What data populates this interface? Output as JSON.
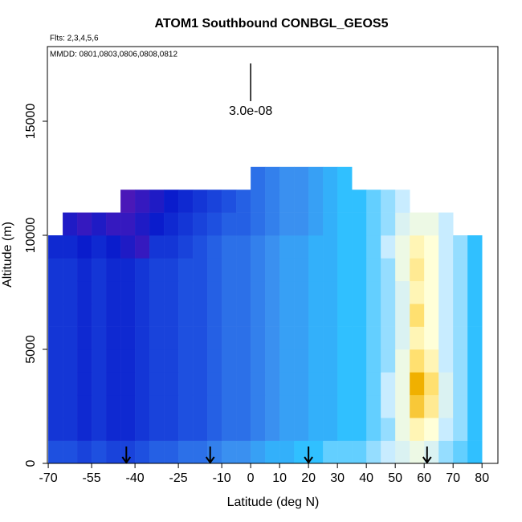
{
  "chart_data": {
    "type": "heatmap",
    "title": "ATOM1 Southbound CONBGL_GEOS5",
    "subtitle": "Flts: 2,3,4,5,6",
    "annotation": "MMDD: 0801,0803,0806,0808,0812",
    "scale_label": "3.0e-08",
    "x_label": "Latitude (deg N)",
    "y_label": "Altitude (m)",
    "xlim": [
      -70.3,
      85.5
    ],
    "ylim": [
      0,
      18275
    ],
    "xticks": [
      -70,
      -55,
      -40,
      -25,
      -10,
      0,
      10,
      20,
      30,
      40,
      50,
      60,
      70,
      80
    ],
    "yticks": [
      0,
      5000,
      10000,
      15000
    ],
    "lat_edges": [
      -70,
      -65,
      -60,
      -55,
      -50,
      -45,
      -40,
      -35,
      -30,
      -25,
      -20,
      -15,
      -10,
      -5,
      0,
      5,
      10,
      15,
      20,
      25,
      30,
      35,
      40,
      45,
      50,
      55,
      60,
      65,
      70,
      75,
      80
    ],
    "alt_edges": [
      0,
      1000,
      2000,
      3000,
      4000,
      5000,
      6000,
      7000,
      8000,
      9000,
      10000,
      11000,
      12000,
      13000
    ],
    "colormap": [
      {
        "value": 9e-09,
        "color": "#4a18b8"
      },
      {
        "value": 1.2e-08,
        "color": "#0a1ccc"
      },
      {
        "value": 1.6e-08,
        "color": "#1e50e0"
      },
      {
        "value": 2e-08,
        "color": "#3a90f0"
      },
      {
        "value": 2.3e-08,
        "color": "#30c0ff"
      },
      {
        "value": 2.6e-08,
        "color": "#c8ecff"
      },
      {
        "value": 2.9e-08,
        "color": "#ffffd8"
      },
      {
        "value": 3.2e-08,
        "color": "#ffe070"
      },
      {
        "value": 3.4e-08,
        "color": "#f0b000"
      }
    ],
    "arrows_lat": [
      -43,
      -14,
      20,
      61
    ],
    "z": [
      [
        1.6e-08,
        1.6e-08,
        1.5e-08,
        1.6e-08,
        1.5e-08,
        1.5e-08,
        1.6e-08,
        1.7e-08,
        1.7e-08,
        1.8e-08,
        1.8e-08,
        1.9e-08,
        2e-08,
        2e-08,
        2.1e-08,
        2.2e-08,
        2.2e-08,
        2.3e-08,
        2.3e-08,
        2.4e-08,
        2.4e-08,
        2.4e-08,
        2.5e-08,
        2.6e-08,
        2.7e-08,
        2.8e-08,
        2.7e-08,
        2.5e-08,
        2.4e-08,
        2.3e-08
      ],
      [
        1.4e-08,
        1.4e-08,
        1.3e-08,
        1.4e-08,
        1.3e-08,
        1.3e-08,
        1.4e-08,
        1.5e-08,
        1.5e-08,
        1.6e-08,
        1.6e-08,
        1.7e-08,
        1.8e-08,
        1.8e-08,
        1.9e-08,
        2e-08,
        2.1e-08,
        2.1e-08,
        2.2e-08,
        2.2e-08,
        2.3e-08,
        2.3e-08,
        2.4e-08,
        2.5e-08,
        2.8e-08,
        3e-08,
        2.9e-08,
        2.6e-08,
        2.5e-08,
        2.3e-08
      ],
      [
        1.4e-08,
        1.4e-08,
        1.3e-08,
        1.4e-08,
        1.3e-08,
        1.3e-08,
        1.4e-08,
        1.5e-08,
        1.5e-08,
        1.6e-08,
        1.6e-08,
        1.7e-08,
        1.8e-08,
        1.8e-08,
        1.9e-08,
        2e-08,
        2.1e-08,
        2.1e-08,
        2.2e-08,
        2.2e-08,
        2.3e-08,
        2.3e-08,
        2.4e-08,
        2.6e-08,
        2.8e-08,
        3.3e-08,
        3.1e-08,
        2.7e-08,
        2.5e-08,
        2.3e-08
      ],
      [
        1.4e-08,
        1.4e-08,
        1.3e-08,
        1.4e-08,
        1.3e-08,
        1.3e-08,
        1.4e-08,
        1.5e-08,
        1.5e-08,
        1.6e-08,
        1.6e-08,
        1.7e-08,
        1.8e-08,
        1.8e-08,
        1.9e-08,
        2e-08,
        2.1e-08,
        2.1e-08,
        2.2e-08,
        2.2e-08,
        2.3e-08,
        2.3e-08,
        2.4e-08,
        2.6e-08,
        2.8e-08,
        3.4e-08,
        3.2e-08,
        2.7e-08,
        2.5e-08,
        2.3e-08
      ],
      [
        1.4e-08,
        1.4e-08,
        1.3e-08,
        1.4e-08,
        1.3e-08,
        1.3e-08,
        1.4e-08,
        1.5e-08,
        1.5e-08,
        1.6e-08,
        1.6e-08,
        1.7e-08,
        1.8e-08,
        1.8e-08,
        1.9e-08,
        2e-08,
        2.1e-08,
        2.1e-08,
        2.2e-08,
        2.2e-08,
        2.3e-08,
        2.3e-08,
        2.4e-08,
        2.5e-08,
        2.8e-08,
        3.2e-08,
        3e-08,
        2.6e-08,
        2.5e-08,
        2.3e-08
      ],
      [
        1.4e-08,
        1.4e-08,
        1.3e-08,
        1.4e-08,
        1.3e-08,
        1.3e-08,
        1.4e-08,
        1.5e-08,
        1.5e-08,
        1.6e-08,
        1.6e-08,
        1.7e-08,
        1.8e-08,
        1.8e-08,
        1.9e-08,
        2e-08,
        2.1e-08,
        2.1e-08,
        2.2e-08,
        2.2e-08,
        2.3e-08,
        2.3e-08,
        2.4e-08,
        2.5e-08,
        2.7e-08,
        3e-08,
        2.9e-08,
        2.6e-08,
        2.5e-08,
        2.3e-08
      ],
      [
        1.4e-08,
        1.4e-08,
        1.3e-08,
        1.4e-08,
        1.3e-08,
        1.3e-08,
        1.4e-08,
        1.5e-08,
        1.5e-08,
        1.6e-08,
        1.6e-08,
        1.7e-08,
        1.8e-08,
        1.8e-08,
        1.9e-08,
        2e-08,
        2.1e-08,
        2.1e-08,
        2.2e-08,
        2.2e-08,
        2.3e-08,
        2.3e-08,
        2.4e-08,
        2.5e-08,
        2.7e-08,
        3.2e-08,
        2.9e-08,
        2.6e-08,
        2.5e-08,
        2.3e-08
      ],
      [
        1.4e-08,
        1.4e-08,
        1.3e-08,
        1.4e-08,
        1.3e-08,
        1.3e-08,
        1.4e-08,
        1.5e-08,
        1.5e-08,
        1.6e-08,
        1.6e-08,
        1.7e-08,
        1.8e-08,
        1.8e-08,
        1.9e-08,
        2e-08,
        2.1e-08,
        2.1e-08,
        2.2e-08,
        2.2e-08,
        2.3e-08,
        2.3e-08,
        2.4e-08,
        2.5e-08,
        2.7e-08,
        3e-08,
        2.9e-08,
        2.6e-08,
        2.5e-08,
        2.3e-08
      ],
      [
        1.4e-08,
        1.4e-08,
        1.3e-08,
        1.4e-08,
        1.3e-08,
        1.3e-08,
        1.4e-08,
        1.5e-08,
        1.5e-08,
        1.6e-08,
        1.6e-08,
        1.7e-08,
        1.8e-08,
        1.8e-08,
        1.9e-08,
        2e-08,
        2.1e-08,
        2.1e-08,
        2.2e-08,
        2.2e-08,
        2.3e-08,
        2.3e-08,
        2.4e-08,
        2.5e-08,
        2.8e-08,
        3.1e-08,
        2.9e-08,
        2.6e-08,
        2.5e-08,
        2.3e-08
      ],
      [
        1.3e-08,
        1.3e-08,
        1.2e-08,
        1.3e-08,
        1.2e-08,
        1.1e-08,
        1e-08,
        1.4e-08,
        1.4e-08,
        1.5e-08,
        1.6e-08,
        1.7e-08,
        1.8e-08,
        1.8e-08,
        1.9e-08,
        2e-08,
        2.1e-08,
        2.1e-08,
        2.2e-08,
        2.2e-08,
        2.3e-08,
        2.3e-08,
        2.4e-08,
        2.6e-08,
        2.8e-08,
        3e-08,
        2.9e-08,
        2.6e-08,
        2.5e-08,
        2.3e-08
      ],
      [
        null,
        1.1e-08,
        1e-08,
        1.1e-08,
        1e-08,
        1e-08,
        1.1e-08,
        1.2e-08,
        1.3e-08,
        1.4e-08,
        1.5e-08,
        1.6e-08,
        1.7e-08,
        1.7e-08,
        1.8e-08,
        1.9e-08,
        2e-08,
        2e-08,
        2.1e-08,
        2.2e-08,
        2.3e-08,
        2.3e-08,
        2.4e-08,
        2.5e-08,
        2.7e-08,
        2.8e-08,
        2.8e-08,
        2.6e-08,
        null,
        null
      ],
      [
        null,
        null,
        null,
        null,
        null,
        9e-09,
        1e-08,
        1.1e-08,
        1.2e-08,
        1.3e-08,
        1.4e-08,
        1.5e-08,
        1.6e-08,
        1.7e-08,
        1.8e-08,
        1.9e-08,
        2e-08,
        2e-08,
        2.1e-08,
        2.2e-08,
        2.3e-08,
        2.3e-08,
        2.4e-08,
        2.5e-08,
        2.6e-08,
        null,
        null,
        null,
        null,
        null
      ],
      [
        null,
        null,
        null,
        null,
        null,
        null,
        null,
        null,
        null,
        null,
        null,
        null,
        null,
        null,
        1.8e-08,
        1.9e-08,
        2e-08,
        2e-08,
        2.1e-08,
        2.2e-08,
        2.3e-08,
        null,
        null,
        null,
        null,
        null,
        null,
        null,
        null,
        null
      ]
    ]
  }
}
